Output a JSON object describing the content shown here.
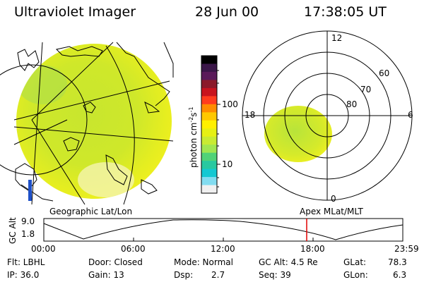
{
  "header": {
    "instrument": "Ultraviolet Imager",
    "date": "28 Jun 00",
    "time": "17:38:05 UT"
  },
  "colorbar": {
    "unit_label": "photon cm",
    "unit_exp1": "-2",
    "unit_mid": "s",
    "unit_exp2": "-1",
    "ticks": [
      "100",
      "10"
    ],
    "colors": [
      "#000000",
      "#3a1648",
      "#5a1a5a",
      "#8b1a2a",
      "#c8141e",
      "#ff3c1e",
      "#ff8c00",
      "#ffc800",
      "#fff000",
      "#e6f014",
      "#c8eb32",
      "#a0e650",
      "#50d278",
      "#28c8a0",
      "#14c8d2",
      "#82dcf0",
      "#f0f0f0"
    ]
  },
  "polar": {
    "mlt_labels": [
      "12",
      "18",
      "6",
      "0"
    ],
    "lat_labels": [
      "60",
      "70",
      "80"
    ]
  },
  "map_labels": {
    "left": "Geographic Lat/Lon",
    "right": "Apex MLat/MLT"
  },
  "altitude_plot": {
    "ylabel": "GC Alt",
    "yticks": [
      "9.0",
      "1.8"
    ],
    "xticks": [
      "00:00",
      "06:00",
      "12:00",
      "18:00",
      "23:59"
    ],
    "marker_color": "#e00000"
  },
  "info": {
    "flt": "Flt: LBHL",
    "ip": "IP: 36.0",
    "door": "Door: Closed",
    "gain": "Gain: 13",
    "mode": "Mode: Normal",
    "dsp_label": "Dsp:",
    "dsp_value": "2.7",
    "gcalt": "GC Alt: 4.5 Re",
    "seq": "Seq: 39",
    "glat_label": "GLat:",
    "glat_value": "78.3",
    "glon_label": "GLon:",
    "glon_value": "6.3"
  }
}
